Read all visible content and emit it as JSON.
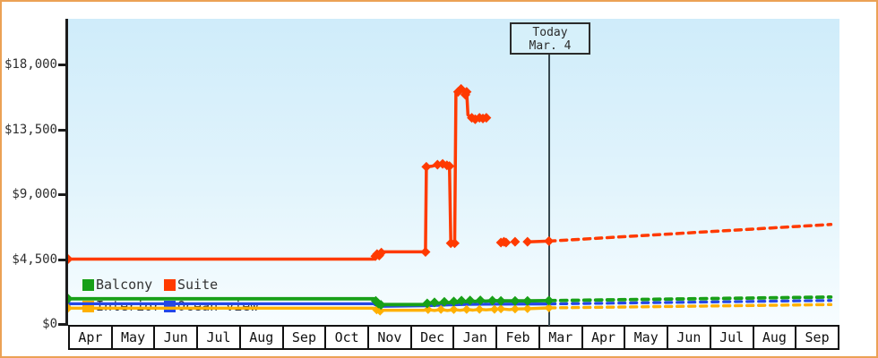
{
  "chart_data": {
    "type": "line",
    "title": "",
    "today": {
      "line1": "Today",
      "line2": "Mar. 4",
      "x": 11.22
    },
    "y_axis": {
      "tick_labels": [
        "$18,000",
        "$13,500",
        "$9,000",
        "$4,500",
        "$0"
      ],
      "tick_values": [
        18000,
        13500,
        9000,
        4500,
        0
      ],
      "min": 0,
      "max": 18000
    },
    "x_axis": {
      "month_labels": [
        "Apr",
        "May",
        "Jun",
        "Jul",
        "Aug",
        "Sep",
        "Oct",
        "Nov",
        "Dec",
        "Jan",
        "Feb",
        "Mar",
        "Apr",
        "May",
        "Jun",
        "Jul",
        "Aug",
        "Sep"
      ],
      "unit": "month-index"
    },
    "legend_items": [
      {
        "label": "Balcony",
        "color": "#18a018"
      },
      {
        "label": "Suite",
        "color": "#ff3a00"
      },
      {
        "label": "Interior",
        "color": "#ffb000"
      },
      {
        "label": "Ocean view",
        "color": "#2547e6"
      }
    ],
    "grid": false,
    "legend_position": "bottom-left-inside",
    "series": [
      {
        "name": "Ocean view",
        "color": "#2547e6",
        "line_width": 3.2,
        "marker_size": 4.5,
        "segments": [
          [
            [
              0,
              1400
            ],
            [
              7.13,
              1400
            ],
            [
              7.24,
              1200
            ],
            [
              7.36,
              1220
            ],
            [
              8.34,
              1260
            ],
            [
              8.9,
              1320
            ],
            [
              9.3,
              1360
            ],
            [
              9.74,
              1370
            ],
            [
              11.22,
              1390
            ]
          ]
        ],
        "markers": [
          [
            0,
            1400
          ]
        ],
        "lone_points": [],
        "projection": [
          [
            11.22,
            1390
          ],
          [
            17.8,
            1630
          ]
        ]
      },
      {
        "name": "Interior",
        "color": "#ffb000",
        "line_width": 3.4,
        "marker_size": 5,
        "segments": [
          [
            [
              0,
              1100
            ],
            [
              7.13,
              1100
            ],
            [
              7.2,
              980
            ],
            [
              7.28,
              890
            ],
            [
              7.36,
              950
            ],
            [
              8.3,
              950
            ],
            [
              8.4,
              1000
            ],
            [
              8.55,
              940
            ],
            [
              8.7,
              1010
            ],
            [
              8.85,
              940
            ],
            [
              9.0,
              1000
            ],
            [
              9.15,
              950
            ],
            [
              9.3,
              1010
            ],
            [
              9.45,
              960
            ],
            [
              9.6,
              1020
            ],
            [
              9.75,
              980
            ],
            [
              9.95,
              1020
            ],
            [
              10.1,
              1050
            ],
            [
              10.3,
              1000
            ],
            [
              10.43,
              1040
            ],
            [
              10.72,
              1060
            ],
            [
              11.22,
              1120
            ]
          ]
        ],
        "markers": [
          [
            0,
            1100
          ],
          [
            7.2,
            980
          ],
          [
            7.28,
            890
          ],
          [
            8.4,
            1000
          ],
          [
            8.7,
            1010
          ],
          [
            9.0,
            1000
          ],
          [
            9.3,
            1010
          ],
          [
            9.6,
            1020
          ],
          [
            9.95,
            1020
          ],
          [
            10.1,
            1050
          ],
          [
            10.43,
            1040
          ],
          [
            10.72,
            1060
          ],
          [
            11.22,
            1120
          ]
        ],
        "lone_points": [],
        "projection": [
          [
            11.22,
            1120
          ],
          [
            17.8,
            1350
          ]
        ]
      },
      {
        "name": "Balcony",
        "color": "#18a018",
        "line_width": 3.8,
        "marker_size": 5.5,
        "segments": [
          [
            [
              0,
              1750
            ],
            [
              7.13,
              1750
            ],
            [
              7.18,
              1600
            ],
            [
              7.24,
              1420
            ],
            [
              7.3,
              1330
            ],
            [
              7.36,
              1350
            ],
            [
              8.3,
              1350
            ],
            [
              8.38,
              1430
            ],
            [
              8.55,
              1500
            ],
            [
              8.65,
              1440
            ],
            [
              8.78,
              1540
            ],
            [
              8.88,
              1470
            ],
            [
              9.0,
              1560
            ],
            [
              9.08,
              1490
            ],
            [
              9.18,
              1620
            ],
            [
              9.28,
              1540
            ],
            [
              9.38,
              1630
            ],
            [
              9.5,
              1560
            ],
            [
              9.62,
              1640
            ],
            [
              9.74,
              1580
            ],
            [
              9.9,
              1620
            ],
            [
              10.1,
              1600
            ],
            [
              10.43,
              1600
            ],
            [
              10.72,
              1600
            ],
            [
              11.22,
              1620
            ]
          ]
        ],
        "markers": [
          [
            0,
            1750
          ],
          [
            7.18,
            1600
          ],
          [
            7.24,
            1420
          ],
          [
            7.3,
            1330
          ],
          [
            8.38,
            1430
          ],
          [
            8.55,
            1500
          ],
          [
            8.78,
            1540
          ],
          [
            9.0,
            1560
          ],
          [
            9.18,
            1620
          ],
          [
            9.38,
            1630
          ],
          [
            9.62,
            1640
          ],
          [
            9.9,
            1620
          ],
          [
            10.1,
            1600
          ],
          [
            10.43,
            1600
          ],
          [
            10.72,
            1600
          ],
          [
            11.22,
            1620
          ]
        ],
        "lone_points": [],
        "projection": [
          [
            11.22,
            1620
          ],
          [
            17.8,
            1870
          ]
        ]
      },
      {
        "name": "Suite",
        "color": "#ff3a00",
        "line_width": 3.5,
        "marker_size": 5.5,
        "segments": [
          [
            [
              0,
              4500
            ],
            [
              7.13,
              4500
            ],
            [
              7.17,
              4700
            ],
            [
              7.21,
              4850
            ],
            [
              7.26,
              4750
            ],
            [
              7.31,
              4950
            ],
            [
              7.36,
              5000
            ],
            [
              8.34,
              5000
            ],
            [
              8.36,
              10900
            ],
            [
              8.5,
              10950
            ],
            [
              8.62,
              11050
            ],
            [
              8.74,
              11100
            ],
            [
              8.84,
              11000
            ],
            [
              8.9,
              10950
            ],
            [
              8.93,
              5600
            ],
            [
              9.02,
              5600
            ],
            [
              9.05,
              16000
            ],
            [
              9.1,
              16100
            ],
            [
              9.17,
              16300
            ],
            [
              9.22,
              16200
            ],
            [
              9.27,
              15900
            ],
            [
              9.3,
              16100
            ],
            [
              9.33,
              14500
            ],
            [
              9.42,
              14300
            ],
            [
              9.5,
              14200
            ],
            [
              9.6,
              14300
            ],
            [
              9.68,
              14250
            ],
            [
              9.76,
              14300
            ]
          ],
          [
            [
              10.72,
              5700
            ],
            [
              11.22,
              5750
            ]
          ]
        ],
        "markers": [
          [
            0,
            4500
          ],
          [
            7.17,
            4700
          ],
          [
            7.21,
            4850
          ],
          [
            7.26,
            4750
          ],
          [
            7.31,
            4950
          ],
          [
            8.34,
            5000
          ],
          [
            8.36,
            10900
          ],
          [
            8.62,
            11050
          ],
          [
            8.74,
            11100
          ],
          [
            8.84,
            11000
          ],
          [
            8.9,
            10950
          ],
          [
            8.93,
            5600
          ],
          [
            9.02,
            5600
          ],
          [
            9.1,
            16100
          ],
          [
            9.17,
            16300
          ],
          [
            9.27,
            15900
          ],
          [
            9.3,
            16100
          ],
          [
            9.42,
            14300
          ],
          [
            9.5,
            14200
          ],
          [
            9.6,
            14300
          ],
          [
            9.68,
            14250
          ],
          [
            9.76,
            14300
          ],
          [
            10.72,
            5700
          ],
          [
            11.22,
            5750
          ]
        ],
        "lone_points": [
          [
            10.1,
            5650
          ],
          [
            10.17,
            5700
          ],
          [
            10.22,
            5650
          ],
          [
            10.43,
            5700
          ]
        ],
        "projection": [
          [
            11.22,
            5750
          ],
          [
            17.8,
            6900
          ]
        ]
      }
    ]
  }
}
